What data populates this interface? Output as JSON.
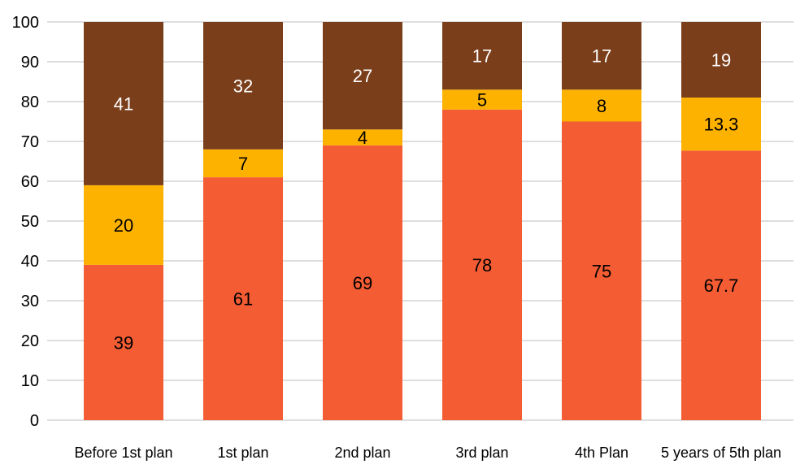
{
  "chart_data": {
    "type": "bar",
    "stacked": true,
    "title": "",
    "xlabel": "",
    "ylabel": "",
    "ylim": [
      0,
      100
    ],
    "yticks": [
      0,
      10,
      20,
      30,
      40,
      50,
      60,
      70,
      80,
      90,
      100
    ],
    "grid": true,
    "legend": "none",
    "categories": [
      "Before 1st plan",
      "1st plan",
      "2nd plan",
      "3rd plan",
      "4th Plan",
      "5 years of 5th plan"
    ],
    "series": [
      {
        "color": "#f45c33",
        "label_color": "#000000",
        "values": [
          39,
          61,
          69,
          78,
          75,
          67.7
        ]
      },
      {
        "color": "#fdb200",
        "label_color": "#000000",
        "values": [
          20,
          7,
          4,
          5,
          8,
          13.3
        ]
      },
      {
        "color": "#7a3e1b",
        "label_color": "#ffffff",
        "values": [
          41,
          32,
          27,
          17,
          17,
          19
        ]
      }
    ]
  }
}
